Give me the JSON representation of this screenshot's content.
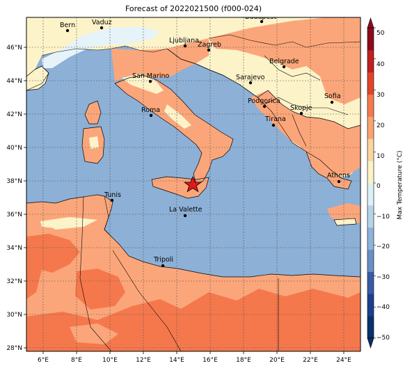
{
  "title": "Forecast of 2022021500 (f000-024)",
  "lon_ticks": [
    "6°E",
    "8°E",
    "10°E",
    "12°E",
    "14°E",
    "16°E",
    "18°E",
    "20°E",
    "22°E",
    "24°E"
  ],
  "lat_ticks": [
    "46°N",
    "44°N",
    "42°N",
    "40°N",
    "38°N",
    "36°N",
    "34°N",
    "32°N",
    "30°N",
    "28°N"
  ],
  "colorbar": {
    "label": "Max Temperature (°C)",
    "ticks": [
      "50",
      "40",
      "30",
      "20",
      "10",
      "0",
      "−10",
      "−20",
      "−30",
      "−40",
      "−50"
    ],
    "colors": [
      "#08306b",
      "#1c3f8f",
      "#3a5aa8",
      "#6a8fc4",
      "#8db3d9",
      "#b6d4e9",
      "#def0f7",
      "#fbf3c6",
      "#fbd4a0",
      "#f9a373",
      "#f47a4e",
      "#e0452b",
      "#c0201f",
      "#8e0a1d"
    ],
    "colors_order": "from -50 to 50"
  },
  "cities": [
    {
      "name": "Bern"
    },
    {
      "name": "Vaduz"
    },
    {
      "name": "Budapest"
    },
    {
      "name": "Ljubljana"
    },
    {
      "name": "Zagreb"
    },
    {
      "name": "Belgrade"
    },
    {
      "name": "San Marino"
    },
    {
      "name": "Sarajevo"
    },
    {
      "name": "Sofia"
    },
    {
      "name": "Podgorica"
    },
    {
      "name": "Skopje"
    },
    {
      "name": "Roma"
    },
    {
      "name": "Tirana"
    },
    {
      "name": "Athens"
    },
    {
      "name": "Tunis"
    },
    {
      "name": "La Valette"
    },
    {
      "name": "Tripoli"
    }
  ],
  "marker": {
    "type": "star",
    "color": "#e01a1a"
  },
  "colors": {
    "sea": "#8db0d6",
    "warm_land": "#fba67a",
    "hot_land": "#f5784c",
    "mild_land": "#fdf3c9",
    "cold_land": "#e6f3f9"
  }
}
